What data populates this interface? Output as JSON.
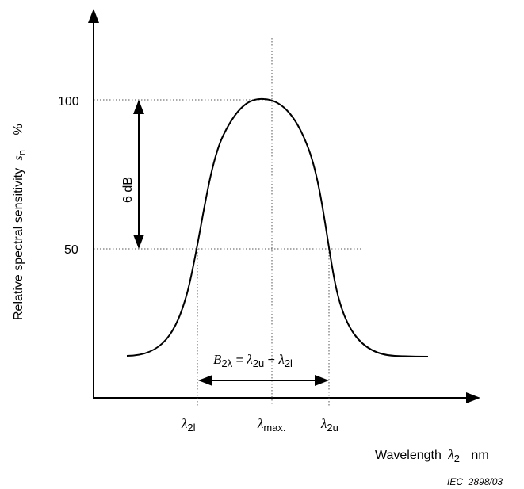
{
  "y_axis": {
    "label": "Relative spectral sensitivity",
    "symbol": "s",
    "symbol_sub": "n",
    "unit": "%",
    "tick_100": "100",
    "tick_50": "50"
  },
  "x_axis": {
    "label": "Wavelength",
    "symbol": "λ",
    "symbol_sub": "2",
    "unit": "nm",
    "tick_lower_symbol": "λ",
    "tick_lower_sub": "2l",
    "tick_max_symbol": "λ",
    "tick_max_sub": "max.",
    "tick_upper_symbol": "λ",
    "tick_upper_sub": "2u"
  },
  "annotations": {
    "level_drop": "6 dB",
    "bandwidth_B": "B",
    "bandwidth_B_sub": "2λ",
    "bandwidth_eq": " = ",
    "bandwidth_l1": "λ",
    "bandwidth_l1_sub": "2u",
    "bandwidth_minus": " − ",
    "bandwidth_l2": "λ",
    "bandwidth_l2_sub": "2l"
  },
  "figure_id": "IEC  2898/03"
}
